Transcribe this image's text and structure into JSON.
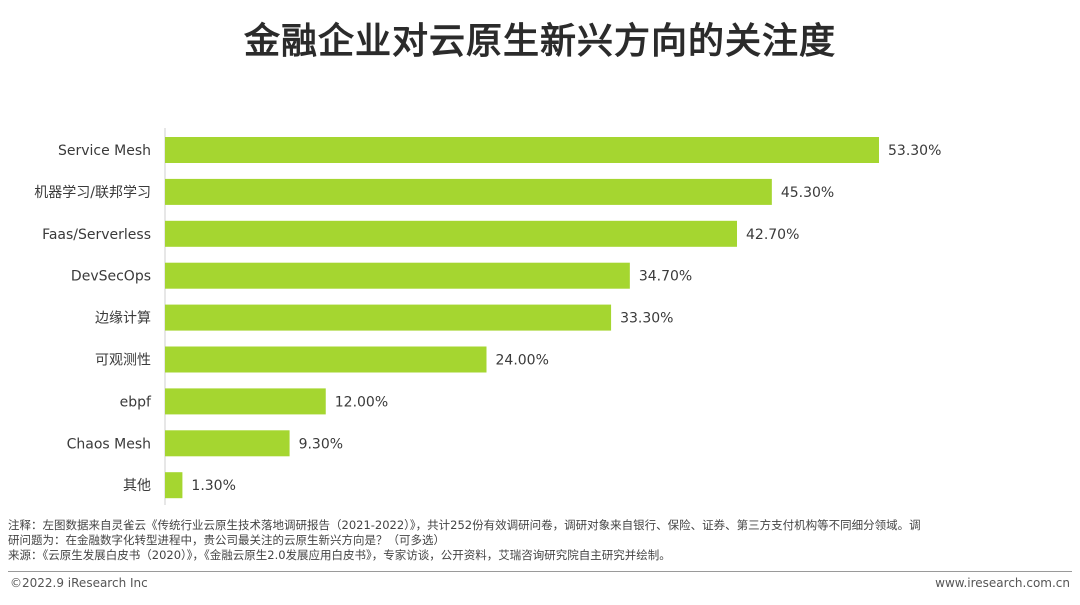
{
  "title": "金融企业对云原生新兴方向的关注度",
  "chart_data": {
    "type": "bar",
    "orientation": "horizontal",
    "categories": [
      "Service Mesh",
      "机器学习/联邦学习",
      "Faas/Serverless",
      "DevSecOps",
      "边缘计算",
      "可观测性",
      "ebpf",
      "Chaos Mesh",
      "其他"
    ],
    "values": [
      53.3,
      45.3,
      42.7,
      34.7,
      33.3,
      24.0,
      12.0,
      9.3,
      1.3
    ],
    "value_labels": [
      "53.30%",
      "45.30%",
      "42.70%",
      "34.70%",
      "33.30%",
      "24.00%",
      "12.00%",
      "9.30%",
      "1.30%"
    ],
    "unit": "%",
    "xlim": [
      0,
      60
    ],
    "grid": false,
    "bar_color": "#a5d630"
  },
  "notes": {
    "line1": "注释：左图数据来自灵雀云《传统行业云原生技术落地调研报告（2021-2022）》，共计252份有效调研问卷，调研对象来自银行、保险、证券、第三方支付机构等不同细分领域。调",
    "line2": "研问题为：在金融数字化转型进程中，贵公司最关注的云原生新兴方向是？（可多选）",
    "line3": "来源：《云原生发展白皮书（2020）》，《金融云原生2.0发展应用白皮书》，专家访谈，公开资料，艾瑞咨询研究院自主研究并绘制。"
  },
  "footer": {
    "copyright": "©2022.9 iResearch Inc",
    "site": "www.iresearch.com.cn"
  }
}
